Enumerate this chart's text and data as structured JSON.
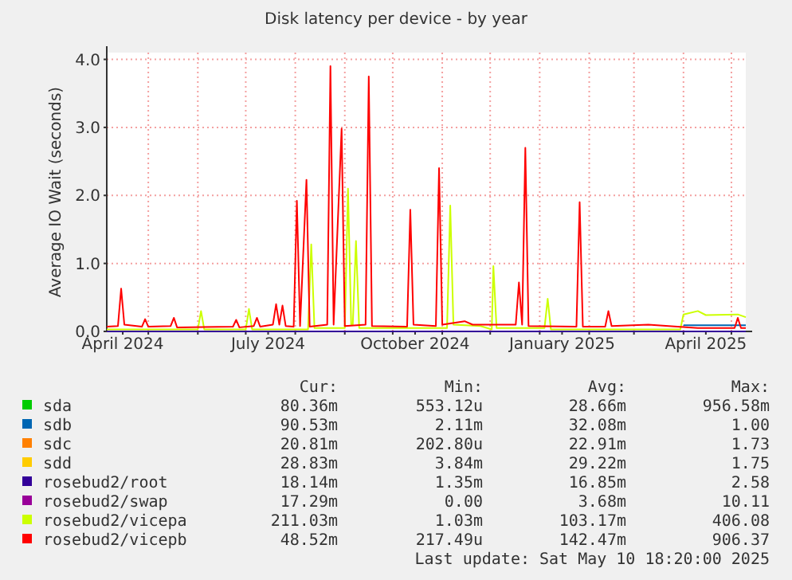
{
  "chart_data": {
    "type": "line",
    "title": "Disk latency per device - by year",
    "ylabel": "Average IO Wait (seconds)",
    "xlim": [
      "2024-04-05",
      "2025-05-10"
    ],
    "xticks": [
      {
        "value": "2024-04-15",
        "label": "April 2024"
      },
      {
        "value": "2024-07-15",
        "label": "July 2024"
      },
      {
        "value": "2024-10-15",
        "label": "October 2024"
      },
      {
        "value": "2025-01-15",
        "label": "January 2025"
      },
      {
        "value": "2025-04-15",
        "label": "April 2025"
      },
      {
        "value": "2024-05-01",
        "label": null
      },
      {
        "value": "2024-06-01",
        "label": null
      },
      {
        "value": "2024-07-01",
        "label": null
      },
      {
        "value": "2024-08-01",
        "label": null
      },
      {
        "value": "2024-09-01",
        "label": null
      },
      {
        "value": "2024-10-01",
        "label": null
      },
      {
        "value": "2024-11-01",
        "label": null
      },
      {
        "value": "2024-12-01",
        "label": null
      },
      {
        "value": "2025-01-01",
        "label": null
      },
      {
        "value": "2025-02-01",
        "label": null
      },
      {
        "value": "2025-03-01",
        "label": null
      },
      {
        "value": "2025-04-01",
        "label": null
      },
      {
        "value": "2025-05-01",
        "label": null
      }
    ],
    "ylim": [
      0,
      4.1
    ],
    "yticks": [
      {
        "value": 0,
        "label": "0.0"
      },
      {
        "value": 1,
        "label": "1.0"
      },
      {
        "value": 2,
        "label": "2.0"
      },
      {
        "value": 3,
        "label": "3.0"
      },
      {
        "value": 4,
        "label": "4.0"
      }
    ],
    "grid": true,
    "legend": "bottom",
    "series": [
      {
        "name": "sda",
        "color": "#00cc00"
      },
      {
        "name": "sdb",
        "color": "#0066b3",
        "x": [
          "2025-04-01",
          "2025-05-10"
        ],
        "values": [
          0.09,
          0.09
        ]
      },
      {
        "name": "sdc",
        "color": "#ff8000"
      },
      {
        "name": "sdd",
        "color": "#ffcc00"
      },
      {
        "name": "rosebud2/root",
        "color": "#330099",
        "x": [
          "2024-04-05",
          "2025-05-10"
        ],
        "values": [
          0,
          0
        ]
      },
      {
        "name": "rosebud2/swap",
        "color": "#990099"
      },
      {
        "name": "rosebud2/vicepa",
        "color": "#ccff00",
        "x": [
          "2024-04-05",
          "2024-06-01",
          "2024-06-03",
          "2024-06-05",
          "2024-07-01",
          "2024-07-03",
          "2024-07-05",
          "2024-08-09",
          "2024-08-11",
          "2024-08-13",
          "2024-09-01",
          "2024-09-03",
          "2024-09-05",
          "2024-09-06",
          "2024-09-08",
          "2024-09-10",
          "2024-10-20",
          "2024-11-04",
          "2024-11-06",
          "2024-11-08",
          "2024-11-25",
          "2024-12-02",
          "2024-12-03",
          "2024-12-05",
          "2025-01-04",
          "2025-01-06",
          "2025-01-08",
          "2025-03-30",
          "2025-04-01",
          "2025-04-10",
          "2025-04-15",
          "2025-05-05",
          "2025-05-10"
        ],
        "values": [
          0.03,
          0.03,
          0.3,
          0.03,
          0.03,
          0.33,
          0.03,
          0.03,
          1.28,
          0.05,
          0.05,
          2.1,
          0.1,
          0.1,
          1.33,
          0.05,
          0.05,
          0.05,
          1.85,
          0.1,
          0.08,
          0.03,
          0.96,
          0.05,
          0.05,
          0.48,
          0.03,
          0.03,
          0.25,
          0.3,
          0.24,
          0.25,
          0.21
        ]
      },
      {
        "name": "rosebud2/vicepb",
        "color": "#ff0000",
        "x": [
          "2024-04-05",
          "2024-04-12",
          "2024-04-14",
          "2024-04-16",
          "2024-04-27",
          "2024-04-29",
          "2024-05-01",
          "2024-05-15",
          "2024-05-17",
          "2024-05-19",
          "2024-06-23",
          "2024-06-25",
          "2024-06-27",
          "2024-07-06",
          "2024-07-08",
          "2024-07-10",
          "2024-07-18",
          "2024-07-20",
          "2024-07-22",
          "2024-07-24",
          "2024-07-26",
          "2024-07-31",
          "2024-08-02",
          "2024-08-04",
          "2024-08-08",
          "2024-08-10",
          "2024-08-21",
          "2024-08-23",
          "2024-08-25",
          "2024-08-30",
          "2024-09-01",
          "2024-09-14",
          "2024-09-16",
          "2024-09-18",
          "2024-10-10",
          "2024-10-12",
          "2024-10-14",
          "2024-10-28",
          "2024-10-30",
          "2024-11-01",
          "2024-11-15",
          "2024-11-20",
          "2024-12-17",
          "2024-12-19",
          "2024-12-21",
          "2024-12-23",
          "2024-12-25",
          "2025-01-24",
          "2025-01-26",
          "2025-01-28",
          "2025-02-11",
          "2025-02-13",
          "2025-02-15",
          "2025-03-10",
          "2025-04-10",
          "2025-05-03",
          "2025-05-05",
          "2025-05-07",
          "2025-05-10"
        ],
        "values": [
          0.07,
          0.08,
          0.63,
          0.1,
          0.07,
          0.18,
          0.07,
          0.08,
          0.2,
          0.06,
          0.07,
          0.17,
          0.06,
          0.08,
          0.2,
          0.07,
          0.1,
          0.4,
          0.1,
          0.38,
          0.08,
          0.07,
          1.92,
          0.08,
          2.23,
          0.07,
          0.1,
          3.9,
          0.1,
          2.98,
          0.08,
          0.1,
          3.75,
          0.08,
          0.07,
          1.79,
          0.1,
          0.08,
          2.4,
          0.1,
          0.15,
          0.1,
          0.1,
          0.72,
          0.1,
          2.7,
          0.08,
          0.07,
          1.9,
          0.07,
          0.07,
          0.3,
          0.08,
          0.1,
          0.05,
          0.05,
          0.2,
          0.05,
          0.05
        ]
      }
    ],
    "annotations": [
      "Cur:",
      "Min:",
      "Avg:",
      "Max:",
      "80.36m",
      "553.12u",
      "28.66m",
      "956.58m",
      "90.53m",
      "2.11m",
      "32.08m",
      "1.00",
      "20.81m",
      "202.80u",
      "22.91m",
      "1.73",
      "28.83m",
      "3.84m",
      "29.22m",
      "1.75",
      "18.14m",
      "1.35m",
      "16.85m",
      "2.58",
      "17.29m",
      "0.00",
      "3.68m",
      "10.11",
      "211.03m",
      "1.03m",
      "103.17m",
      "406.08",
      "48.52m",
      "217.49u",
      "142.47m",
      "906.37",
      "Last update:  Sat May 10 18:20:00 2025"
    ]
  }
}
